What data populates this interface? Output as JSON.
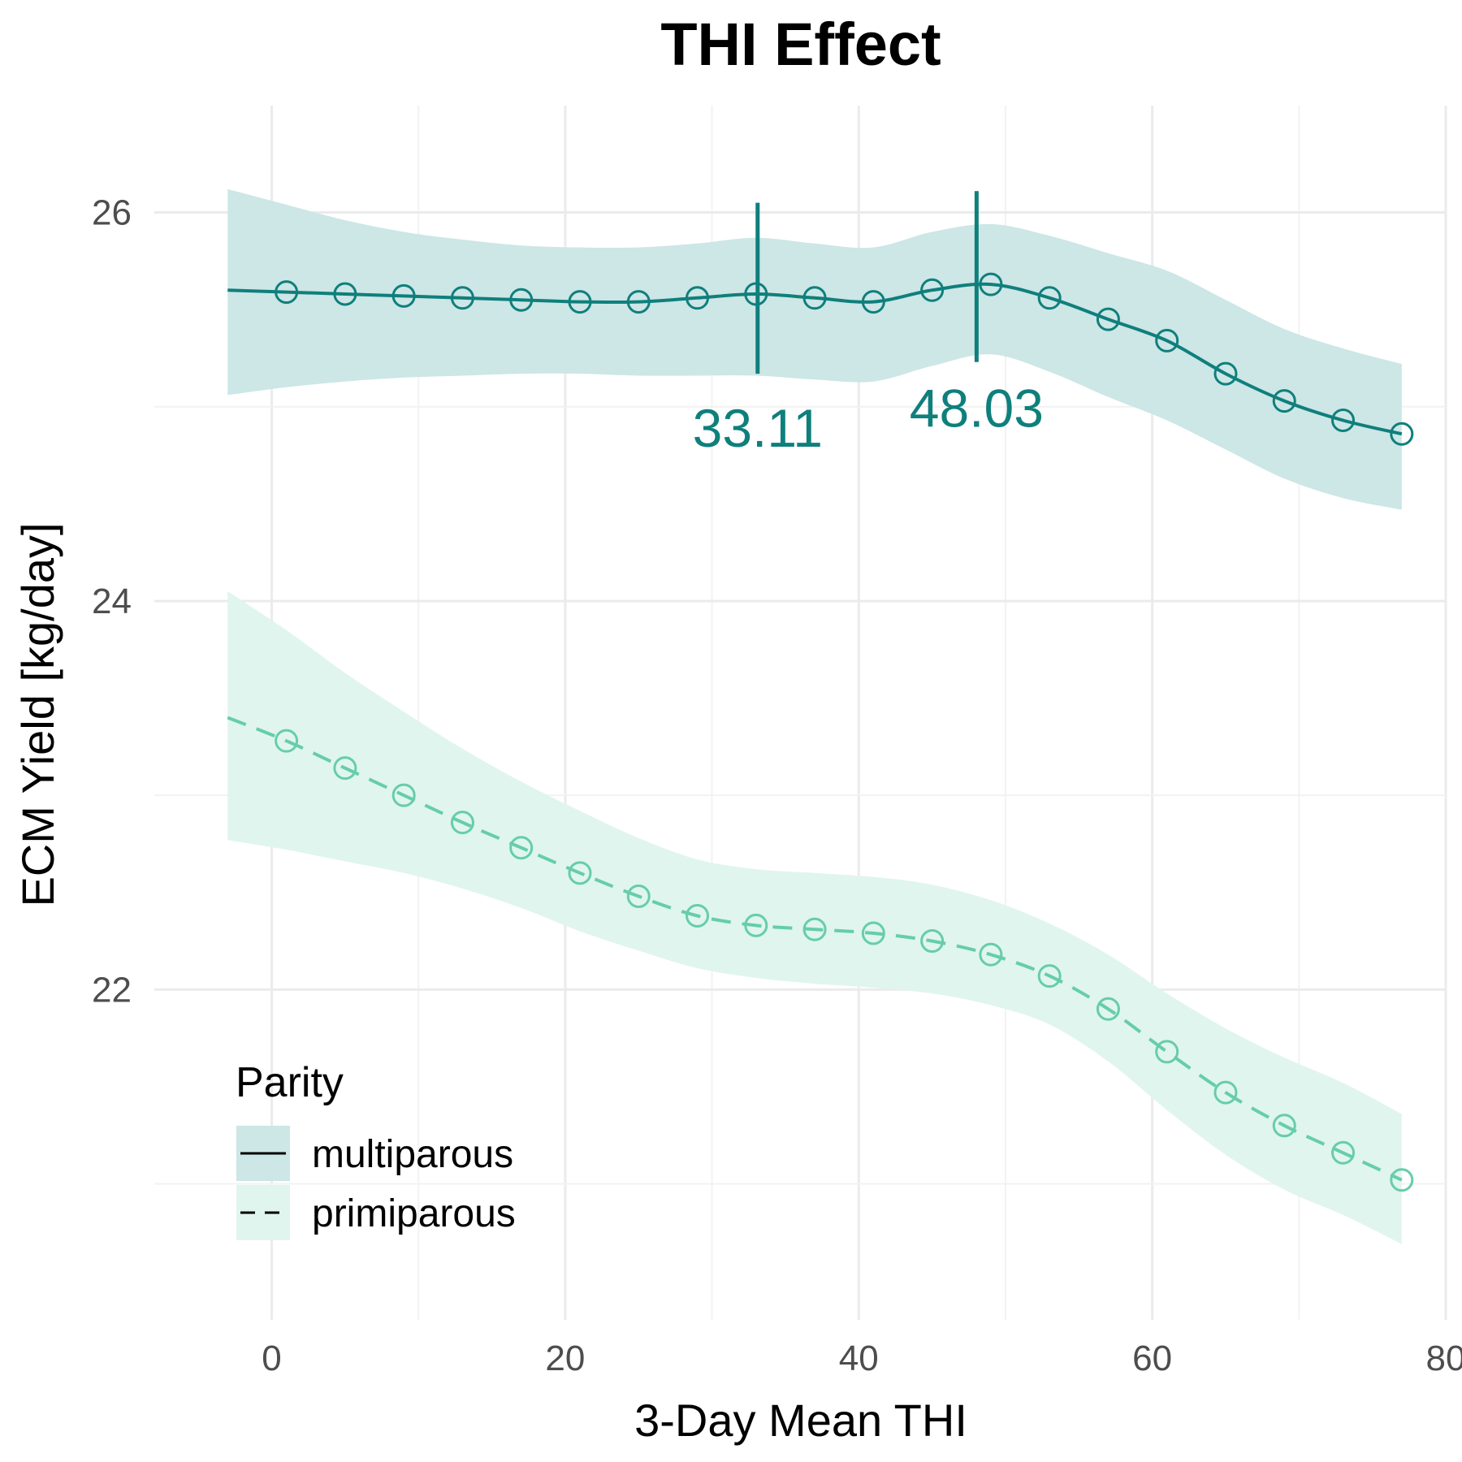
{
  "chart_data": {
    "type": "line",
    "title": "THI Effect",
    "xlabel": "3-Day Mean THI",
    "ylabel": "ECM Yield [kg/day]",
    "xlim": [
      -8,
      80
    ],
    "ylim": [
      20.3,
      26.55
    ],
    "x_ticks": [
      0,
      20,
      40,
      60,
      80
    ],
    "y_ticks": [
      22,
      24,
      26
    ],
    "grid": true,
    "legend": {
      "title": "Parity",
      "position": "bottom-left",
      "entries": [
        "multiparous",
        "primiparous"
      ]
    },
    "series": [
      {
        "name": "multiparous",
        "line_style": "solid",
        "color": "#0f7f7c",
        "fill": "#cde6e6",
        "curve": {
          "x": [
            -3,
            1,
            5,
            9,
            13,
            17,
            21,
            25,
            29,
            33,
            37,
            41,
            45,
            49,
            53,
            57,
            61,
            65,
            69,
            73,
            77
          ],
          "y": [
            25.6,
            25.59,
            25.58,
            25.57,
            25.56,
            25.55,
            25.54,
            25.54,
            25.56,
            25.58,
            25.56,
            25.54,
            25.6,
            25.63,
            25.56,
            25.45,
            25.34,
            25.17,
            25.03,
            24.93,
            24.86
          ],
          "lower": [
            25.06,
            25.1,
            25.13,
            25.15,
            25.16,
            25.17,
            25.17,
            25.16,
            25.16,
            25.16,
            25.14,
            25.13,
            25.21,
            25.27,
            25.18,
            25.05,
            24.93,
            24.78,
            24.63,
            24.53,
            24.47
          ],
          "upper": [
            26.12,
            26.04,
            25.96,
            25.9,
            25.86,
            25.83,
            25.82,
            25.82,
            25.84,
            25.87,
            25.84,
            25.82,
            25.9,
            25.94,
            25.88,
            25.79,
            25.7,
            25.55,
            25.4,
            25.3,
            25.22
          ]
        },
        "points": {
          "x": [
            1,
            5,
            9,
            13,
            17,
            21,
            25,
            29,
            33,
            37,
            41,
            45,
            49,
            53,
            57,
            61,
            65,
            69,
            73,
            77
          ],
          "y": [
            25.59,
            25.58,
            25.57,
            25.56,
            25.55,
            25.54,
            25.54,
            25.56,
            25.58,
            25.56,
            25.54,
            25.6,
            25.63,
            25.56,
            25.45,
            25.34,
            25.17,
            25.03,
            24.93,
            24.86
          ]
        }
      },
      {
        "name": "primiparous",
        "line_style": "dashed",
        "color": "#66cdaa",
        "fill": "#e0f5ee",
        "curve": {
          "x": [
            -3,
            1,
            5,
            9,
            13,
            17,
            21,
            25,
            29,
            33,
            37,
            41,
            45,
            49,
            53,
            57,
            61,
            65,
            69,
            73,
            77
          ],
          "y": [
            23.4,
            23.28,
            23.14,
            23.0,
            22.86,
            22.73,
            22.6,
            22.48,
            22.38,
            22.33,
            22.31,
            22.29,
            22.25,
            22.18,
            22.07,
            21.9,
            21.68,
            21.47,
            21.3,
            21.16,
            21.02
          ],
          "lower": [
            22.77,
            22.72,
            22.66,
            22.6,
            22.52,
            22.42,
            22.3,
            22.2,
            22.11,
            22.06,
            22.03,
            22.01,
            21.98,
            21.92,
            21.82,
            21.63,
            21.38,
            21.15,
            20.97,
            20.84,
            20.69
          ],
          "upper": [
            24.05,
            23.85,
            23.63,
            23.43,
            23.24,
            23.07,
            22.92,
            22.78,
            22.67,
            22.62,
            22.6,
            22.58,
            22.54,
            22.46,
            22.34,
            22.18,
            21.98,
            21.8,
            21.65,
            21.52,
            21.36
          ]
        },
        "points": {
          "x": [
            1,
            5,
            9,
            13,
            17,
            21,
            25,
            29,
            33,
            37,
            41,
            45,
            49,
            53,
            57,
            61,
            65,
            69,
            73,
            77
          ],
          "y": [
            23.28,
            23.14,
            23.0,
            22.86,
            22.73,
            22.6,
            22.48,
            22.38,
            22.33,
            22.31,
            22.29,
            22.25,
            22.18,
            22.07,
            21.9,
            21.68,
            21.47,
            21.3,
            21.16,
            21.02
          ]
        }
      }
    ],
    "annotations": [
      {
        "x": 33.11,
        "ymin": 25.17,
        "ymax": 26.05,
        "label": "33.11",
        "color": "#0f7f7c"
      },
      {
        "x": 48.03,
        "ymin": 25.23,
        "ymax": 26.11,
        "label": "48.03",
        "color": "#0f7f7c"
      }
    ]
  }
}
